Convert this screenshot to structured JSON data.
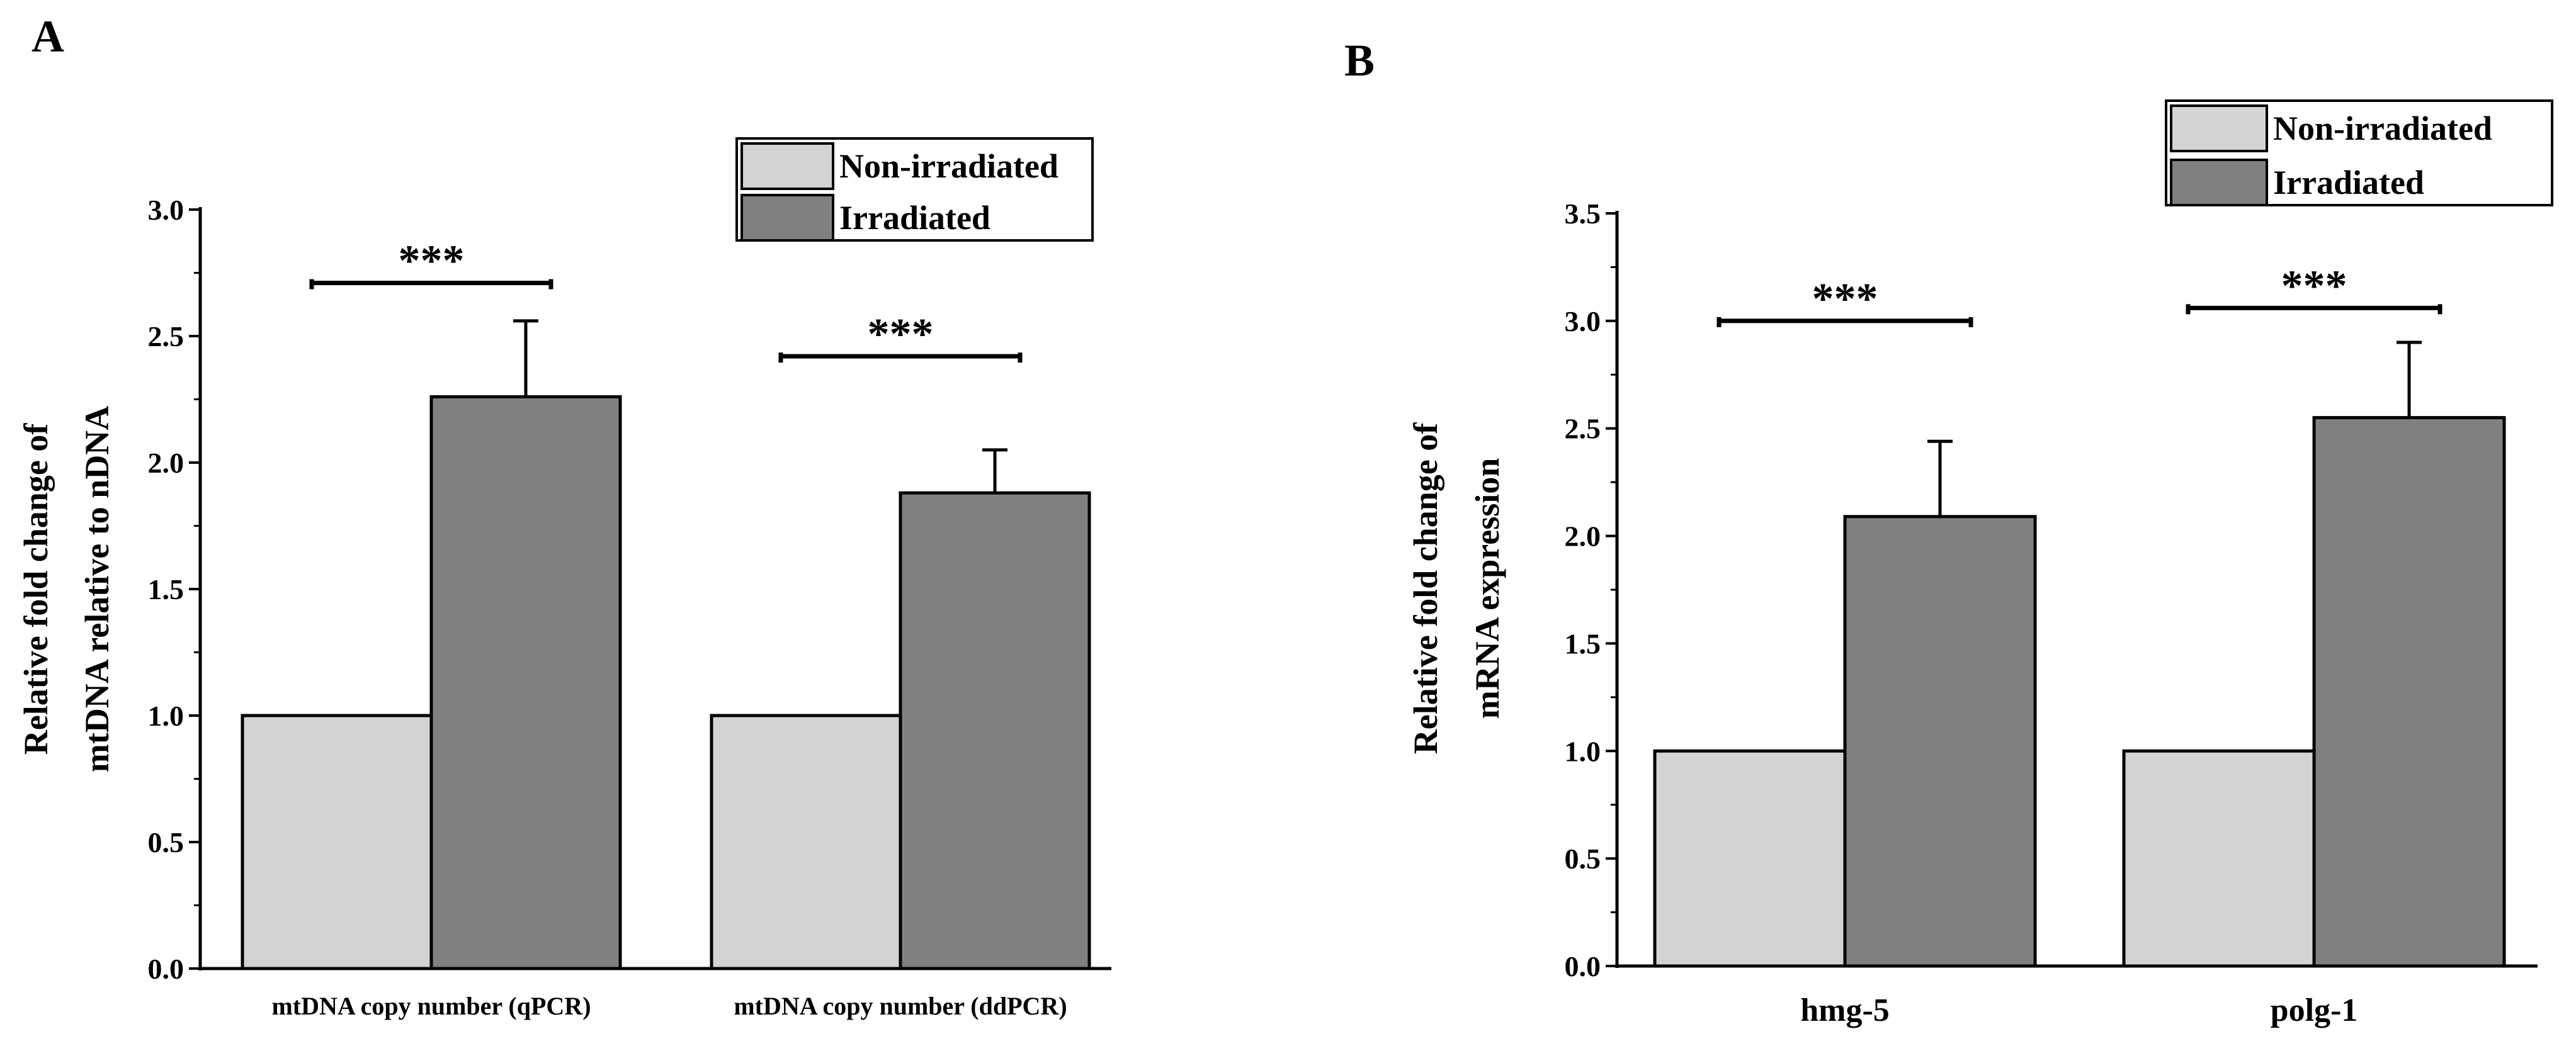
{
  "colors": {
    "non_irradiated": "#d3d3d3",
    "irradiated": "#808080",
    "axis": "#000000"
  },
  "chart_data": [
    {
      "type": "bar",
      "panel": "A",
      "title": "",
      "xlabel": "",
      "ylabel": [
        "Relative fold change of",
        "mtDNA relative to nDNA"
      ],
      "ylim": [
        0,
        3.0
      ],
      "yticks": [
        "0.0",
        "0.5",
        "1.0",
        "1.5",
        "2.0",
        "2.5",
        "3.0"
      ],
      "categories": [
        "mtDNA copy number (qPCR)",
        "mtDNA copy number (ddPCR)"
      ],
      "series": [
        {
          "name": "Non-irradiated",
          "values": [
            1.0,
            1.0
          ],
          "errors": [
            0,
            0
          ]
        },
        {
          "name": "Irradiated",
          "values": [
            2.26,
            1.88
          ],
          "errors": [
            0.3,
            0.17
          ]
        }
      ],
      "significance": [
        {
          "label": "***",
          "category": 0,
          "y": 2.71
        },
        {
          "label": "***",
          "category": 1,
          "y": 2.42
        }
      ],
      "legend": {
        "placement": "top-right"
      }
    },
    {
      "type": "bar",
      "panel": "B",
      "title": "",
      "xlabel": "",
      "ylabel": [
        "Relative fold change of",
        "mRNA expression"
      ],
      "ylim": [
        0,
        3.5
      ],
      "yticks": [
        "0.0",
        "0.5",
        "1.0",
        "1.5",
        "2.0",
        "2.5",
        "3.0",
        "3.5"
      ],
      "categories": [
        "hmg-5",
        "polg-1"
      ],
      "series": [
        {
          "name": "Non-irradiated",
          "values": [
            1.0,
            1.0
          ],
          "errors": [
            0,
            0
          ]
        },
        {
          "name": "Irradiated",
          "values": [
            2.09,
            2.55
          ],
          "errors": [
            0.35,
            0.35
          ]
        }
      ],
      "significance": [
        {
          "label": "***",
          "category": 0,
          "y": 3.0
        },
        {
          "label": "***",
          "category": 1,
          "y": 3.06
        }
      ],
      "legend": {
        "placement": "top-right"
      }
    }
  ]
}
